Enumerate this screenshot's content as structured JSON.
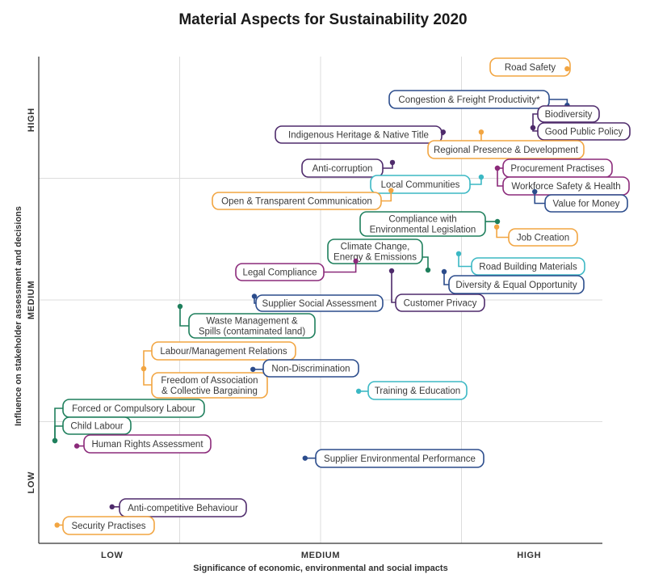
{
  "chart_data": {
    "type": "scatter",
    "title": "Material Aspects for Sustainability 2020",
    "xlabel": "Significance of economic, environmental and social impacts",
    "ylabel": "Influence on stakeholder assessment and decisions",
    "x_tick_labels": [
      "LOW",
      "MEDIUM",
      "HIGH"
    ],
    "y_tick_labels": [
      "LOW",
      "MEDIUM",
      "HIGH"
    ],
    "xlim": [
      0,
      4
    ],
    "ylim": [
      0,
      4
    ],
    "grid": true,
    "legend": "none",
    "colors": {
      "orange": "#F2A541",
      "navy": "#2B4C8C",
      "purple": "#8B2A7A",
      "violet": "#4E2A6B",
      "green": "#1E7F5C",
      "teal": "#3BB8C4",
      "grid": "#dddddd",
      "axis": "#333333"
    },
    "points": [
      {
        "label": [
          "Road Safety"
        ],
        "x": 3.75,
        "y": 3.9,
        "color": "orange"
      },
      {
        "label": [
          "Congestion & Freight Productivity*"
        ],
        "x": 3.75,
        "y": 3.6,
        "color": "navy"
      },
      {
        "label": [
          "Biodiversity"
        ],
        "x": 3.51,
        "y": 3.49,
        "color": "violet"
      },
      {
        "label": [
          "Good Public Policy"
        ],
        "x": 3.51,
        "y": 3.41,
        "color": "violet"
      },
      {
        "label": [
          "Indigenous Heritage & Native Title"
        ],
        "x": 2.87,
        "y": 3.38,
        "color": "violet"
      },
      {
        "label": [
          "Regional Presence & Development"
        ],
        "x": 3.14,
        "y": 3.38,
        "color": "orange"
      },
      {
        "label": [
          "Anti-corruption"
        ],
        "x": 2.51,
        "y": 3.13,
        "color": "violet"
      },
      {
        "label": [
          "Procurement Practises"
        ],
        "x": 3.26,
        "y": 3.13,
        "color": "purple"
      },
      {
        "label": [
          "Workforce Safety & Health"
        ],
        "x": 3.26,
        "y": 3.01,
        "color": "purple"
      },
      {
        "label": [
          "Local Communities"
        ],
        "x": 3.14,
        "y": 3.01,
        "color": "teal"
      },
      {
        "label": [
          "Open & Transparent Communication"
        ],
        "x": 2.5,
        "y": 2.9,
        "color": "orange"
      },
      {
        "label": [
          "Value for Money"
        ],
        "x": 3.52,
        "y": 2.89,
        "color": "navy"
      },
      {
        "label": [
          "Compliance with",
          "Environmental Legislation"
        ],
        "x": 3.25,
        "y": 2.76,
        "color": "green"
      },
      {
        "label": [
          "Job Creation"
        ],
        "x": 3.25,
        "y": 2.6,
        "color": "orange"
      },
      {
        "label": [
          "Climate Change,",
          "Energy & Emissions"
        ],
        "x": 2.78,
        "y": 2.33,
        "color": "green"
      },
      {
        "label": [
          "Road Building Materials"
        ],
        "x": 2.98,
        "y": 2.38,
        "color": "teal"
      },
      {
        "label": [
          "Legal Compliance"
        ],
        "x": 2.25,
        "y": 2.32,
        "color": "purple"
      },
      {
        "label": [
          "Customer Privacy"
        ],
        "x": 2.52,
        "y": 2.32,
        "color": "violet"
      },
      {
        "label": [
          "Diversity & Equal Opportunity"
        ],
        "x": 2.87,
        "y": 2.32,
        "color": "navy"
      },
      {
        "label": [
          "Supplier Social Assessment"
        ],
        "x": 1.53,
        "y": 2.03,
        "color": "navy"
      },
      {
        "label": [
          "Waste Management &",
          "Spills (contaminated land)"
        ],
        "x": 1.0,
        "y": 2.0,
        "color": "green"
      },
      {
        "label": [
          "Labour/Management Relations"
        ],
        "x": 0.73,
        "y": 1.33,
        "color": "orange"
      },
      {
        "label": [
          "Freedom of Association",
          "& Collective Bargaining"
        ],
        "x": 0.73,
        "y": 1.33,
        "color": "orange"
      },
      {
        "label": [
          "Non-Discrimination"
        ],
        "x": 1.52,
        "y": 1.43,
        "color": "navy"
      },
      {
        "label": [
          "Training & Education"
        ],
        "x": 2.27,
        "y": 1.25,
        "color": "teal"
      },
      {
        "label": [
          "Forced or Compulsory Labour"
        ],
        "x": 0.1,
        "y": 0.85,
        "color": "green"
      },
      {
        "label": [
          "Child Labour"
        ],
        "x": 0.1,
        "y": 0.85,
        "color": "green"
      },
      {
        "label": [
          "Human Rights Assessment"
        ],
        "x": 0.27,
        "y": 0.8,
        "color": "purple"
      },
      {
        "label": [
          "Supplier Environmental Performance"
        ],
        "x": 1.89,
        "y": 0.7,
        "color": "navy"
      },
      {
        "label": [
          "Anti-competitive Behaviour"
        ],
        "x": 0.52,
        "y": 0.3,
        "color": "violet"
      },
      {
        "label": [
          "Security Practises"
        ],
        "x": 0.13,
        "y": 0.15,
        "color": "orange"
      }
    ]
  }
}
